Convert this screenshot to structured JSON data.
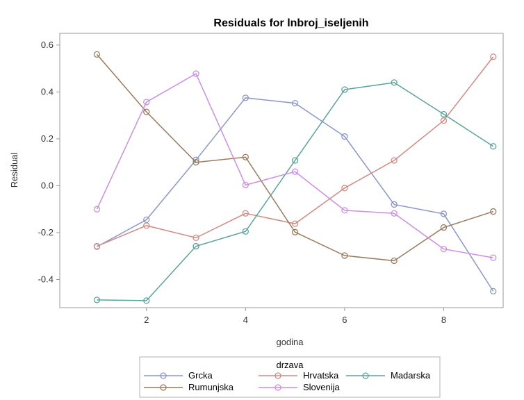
{
  "chart_data": {
    "type": "line",
    "title": "Residuals for lnbroj_iseljenih",
    "xlabel": "godina",
    "ylabel": "Residual",
    "xlim": [
      0.25,
      9.2
    ],
    "ylim": [
      -0.52,
      0.65
    ],
    "xticks": [
      2,
      4,
      6,
      8
    ],
    "xtick_labels": [
      "2",
      "4",
      "6",
      "8"
    ],
    "yticks": [
      -0.4,
      -0.2,
      0.0,
      0.2,
      0.4,
      0.6
    ],
    "ytick_labels": [
      "-0.4",
      "-0.2",
      "0.0",
      "0.2",
      "0.4",
      "0.6"
    ],
    "grid": false,
    "legend": {
      "title": "drzava",
      "placement": "bottom"
    },
    "x": [
      1,
      2,
      3,
      4,
      5,
      6,
      7,
      8,
      9
    ],
    "series": [
      {
        "name": "Grcka",
        "color": "#8b96c8",
        "values": [
          -0.26,
          -0.145,
          0.11,
          0.375,
          0.352,
          0.21,
          -0.08,
          -0.12,
          -0.45
        ]
      },
      {
        "name": "Hrvatska",
        "color": "#d08a84",
        "values": [
          -0.258,
          -0.17,
          -0.222,
          -0.118,
          -0.162,
          -0.01,
          0.108,
          0.278,
          0.55
        ]
      },
      {
        "name": "Madarska",
        "color": "#5aa39a",
        "values": [
          -0.487,
          -0.49,
          -0.258,
          -0.195,
          0.108,
          0.41,
          0.44,
          0.305,
          0.168
        ]
      },
      {
        "name": "Rumunjska",
        "color": "#9a7a5e",
        "values": [
          0.56,
          0.315,
          0.1,
          0.122,
          -0.198,
          -0.298,
          -0.32,
          -0.178,
          -0.11
        ]
      },
      {
        "name": "Slovenija",
        "color": "#cc8ee6",
        "values": [
          -0.1,
          0.357,
          0.478,
          0.003,
          0.06,
          -0.105,
          -0.118,
          -0.27,
          -0.307
        ]
      }
    ]
  }
}
